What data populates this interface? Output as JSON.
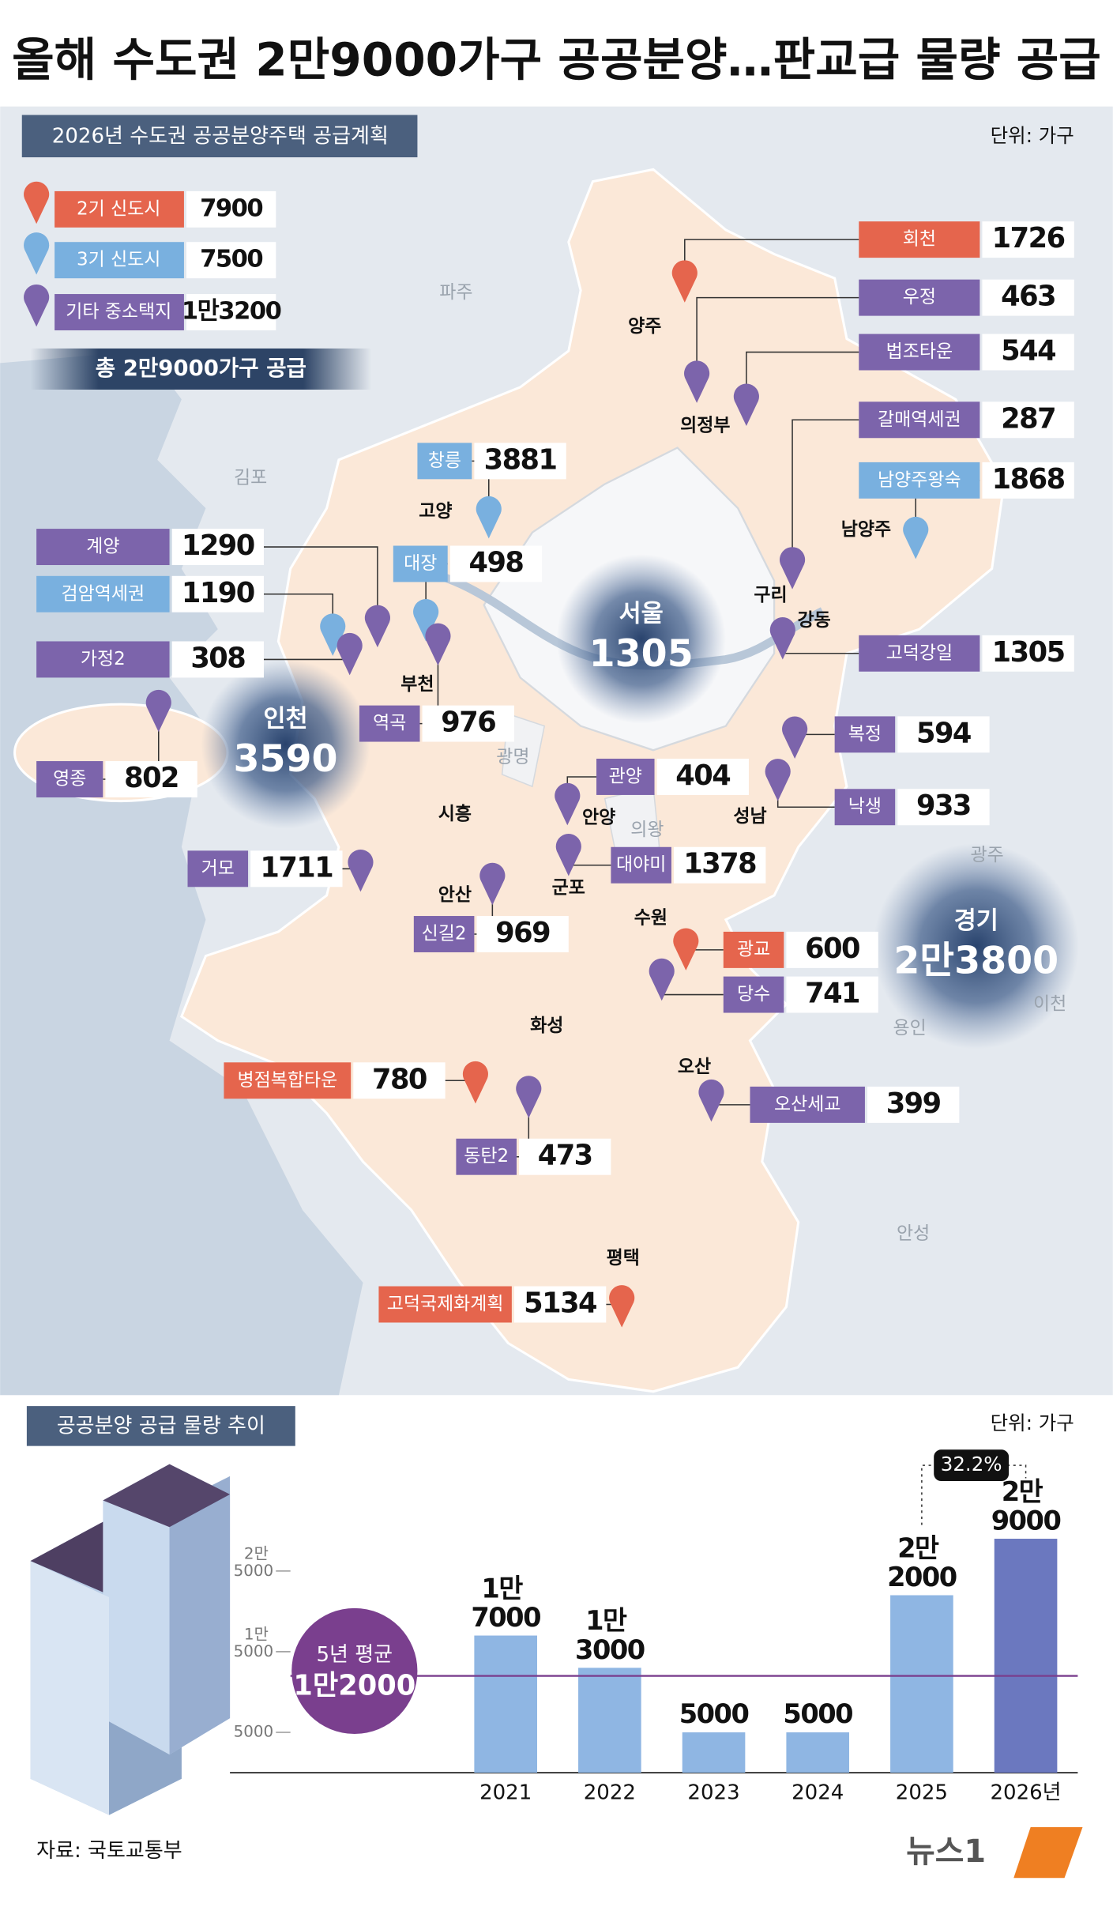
{
  "header": {
    "title": "올해 수도권 2만9000가구 공공분양…판교급 물량 공급",
    "section": "2026년 수도권 공공분양주택 공급계획",
    "unit": "단위: 가구"
  },
  "legend": [
    {
      "name": "2기 신도시",
      "value": 7900,
      "color": "#e5654d"
    },
    {
      "name": "3기 신도시",
      "value": 7500,
      "color": "#79b0df"
    },
    {
      "name": "기타 중소택지",
      "value": "1만3200",
      "color": "#7c64ab"
    }
  ],
  "total": "총 2만9000가구 공급",
  "regions": [
    {
      "name": "서울",
      "value": 1305
    },
    {
      "name": "인천",
      "value": 3590
    },
    {
      "name": "경기",
      "value": "2만3800"
    }
  ],
  "places": [
    "파주",
    "김포",
    "고양",
    "양주",
    "의정부",
    "남양주",
    "구리",
    "강동",
    "부천",
    "광명",
    "시흥",
    "안양",
    "의왕",
    "군포",
    "안산",
    "수원",
    "성남",
    "광주",
    "이천",
    "용인",
    "화성",
    "오산",
    "평택",
    "안성"
  ],
  "sites": [
    {
      "name": "회천",
      "value": 1726,
      "group": 0
    },
    {
      "name": "우정",
      "value": 463,
      "group": 2
    },
    {
      "name": "법조타운",
      "value": 544,
      "group": 2
    },
    {
      "name": "갈매역세권",
      "value": 287,
      "group": 2
    },
    {
      "name": "남양주왕숙",
      "value": 1868,
      "group": 1
    },
    {
      "name": "고덕강일",
      "value": 1305,
      "group": 2
    },
    {
      "name": "복정",
      "value": 594,
      "group": 2
    },
    {
      "name": "낙생",
      "value": 933,
      "group": 2
    },
    {
      "name": "창릉",
      "value": 3881,
      "group": 1
    },
    {
      "name": "대장",
      "value": 498,
      "group": 1
    },
    {
      "name": "계양",
      "value": 1290,
      "group": 2
    },
    {
      "name": "검암역세권",
      "value": 1190,
      "group": 1
    },
    {
      "name": "가정2",
      "value": 308,
      "group": 2
    },
    {
      "name": "역곡",
      "value": 976,
      "group": 2
    },
    {
      "name": "영종",
      "value": 802,
      "group": 2
    },
    {
      "name": "관양",
      "value": 404,
      "group": 2
    },
    {
      "name": "대야미",
      "value": 1378,
      "group": 2
    },
    {
      "name": "거모",
      "value": 1711,
      "group": 2
    },
    {
      "name": "신길2",
      "value": 969,
      "group": 2
    },
    {
      "name": "광교",
      "value": 600,
      "group": 0
    },
    {
      "name": "당수",
      "value": 741,
      "group": 2
    },
    {
      "name": "병점복합타운",
      "value": 780,
      "group": 0
    },
    {
      "name": "동탄2",
      "value": 473,
      "group": 2
    },
    {
      "name": "오산세교",
      "value": 399,
      "group": 2
    },
    {
      "name": "고덕국제화계획",
      "value": 5134,
      "group": 0
    }
  ],
  "chart_data": {
    "type": "bar",
    "title": "공공분양 공급 물량 추이",
    "unit": "단위: 가구",
    "categories": [
      "2021",
      "2022",
      "2023",
      "2024",
      "2025",
      "2026년"
    ],
    "values": [
      17000,
      13000,
      5000,
      5000,
      22000,
      29000
    ],
    "value_labels": [
      "1만 7000",
      "1만 3000",
      "5000",
      "5000",
      "2만 2000",
      "2만 9000"
    ],
    "colors": [
      "#8fb6e3",
      "#8fb6e3",
      "#8fb6e3",
      "#8fb6e3",
      "#8fb6e3",
      "#6b78bf"
    ],
    "ylim": [
      0,
      30000
    ],
    "yticks": [
      5000,
      {
        "value": 15000,
        "label": "1만 5000"
      },
      {
        "value": 25000,
        "label": "2만 5000"
      }
    ],
    "average": {
      "label": "5년 평균",
      "value": 12000,
      "value_label": "1만2000",
      "color": "#7a3f8e"
    },
    "annotation": "32.2%"
  },
  "footer": {
    "source": "자료: 국토교통부",
    "brand": "뉴스1"
  }
}
